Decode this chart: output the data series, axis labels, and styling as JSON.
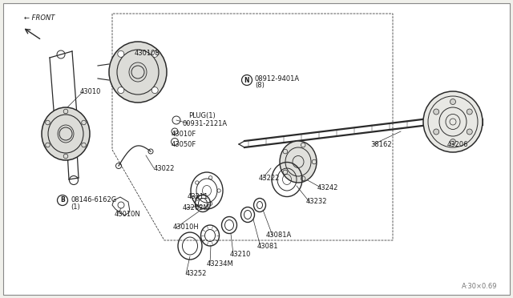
{
  "bg_color": "#f0f0eb",
  "border_color": "#aaaaaa",
  "line_color": "#2a2a2a",
  "text_color": "#1a1a1a",
  "font_size": 6.0,
  "watermark": "A·30×0.69",
  "parts": [
    [
      "43252",
      232,
      30
    ],
    [
      "43234M",
      258,
      42
    ],
    [
      "43210",
      287,
      55
    ],
    [
      "43081",
      321,
      64
    ],
    [
      "43081A",
      332,
      78
    ],
    [
      "43010H",
      216,
      88
    ],
    [
      "43262M",
      228,
      112
    ],
    [
      "43211",
      234,
      126
    ],
    [
      "43010N",
      143,
      105
    ],
    [
      "43022",
      192,
      162
    ],
    [
      "43050F",
      214,
      192
    ],
    [
      "43010F",
      214,
      205
    ],
    [
      "00931-2121A",
      228,
      218
    ],
    [
      "PLUG(1)",
      235,
      228
    ],
    [
      "43010",
      100,
      258
    ],
    [
      "43010B",
      168,
      306
    ],
    [
      "43232",
      382,
      120
    ],
    [
      "43242",
      396,
      138
    ],
    [
      "43222",
      323,
      150
    ],
    [
      "38162",
      462,
      192
    ],
    [
      "43206",
      558,
      192
    ]
  ],
  "circle_labels": [
    [
      "B",
      78,
      122,
      "08146-6162G\n(1)",
      90,
      122
    ],
    [
      "N",
      308,
      273,
      "08912-9401A\n(8)",
      320,
      268
    ]
  ]
}
